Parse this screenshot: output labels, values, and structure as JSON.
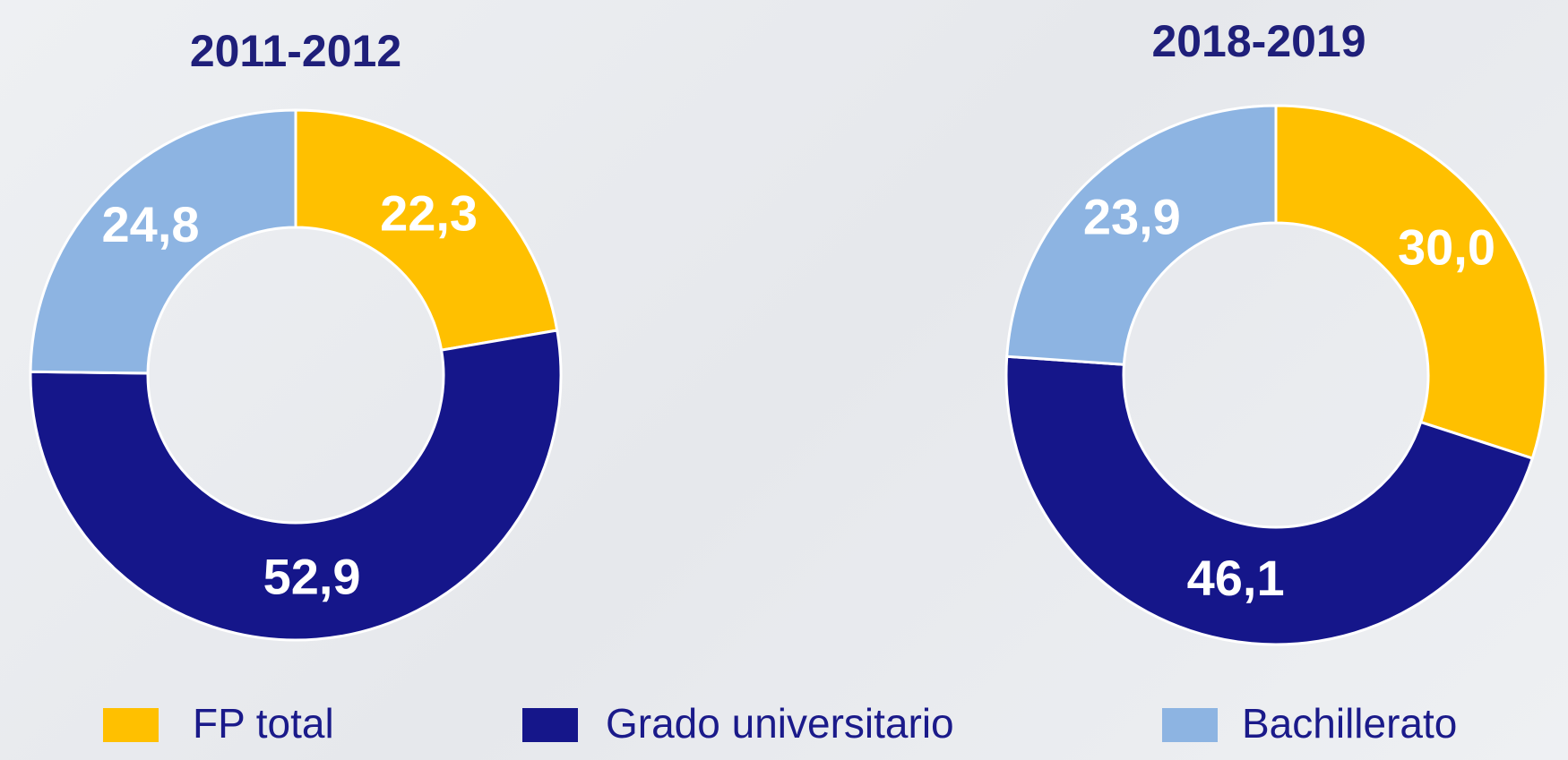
{
  "chart_data": [
    {
      "type": "donut",
      "title": "2011-2012",
      "categories": [
        "FP total",
        "Grado universitario",
        "Bachillerato"
      ],
      "values": [
        22.3,
        52.9,
        24.8
      ],
      "value_labels": [
        "22,3",
        "52,9",
        "24,8"
      ],
      "colors": [
        "#ffc000",
        "#15168a",
        "#8db4e2"
      ]
    },
    {
      "type": "donut",
      "title": "2018-2019",
      "categories": [
        "FP total",
        "Grado universitario",
        "Bachillerato"
      ],
      "values": [
        30.0,
        46.1,
        23.9
      ],
      "value_labels": [
        "30,0",
        "46,1",
        "23,9"
      ],
      "colors": [
        "#ffc000",
        "#15168a",
        "#8db4e2"
      ]
    }
  ]
}
